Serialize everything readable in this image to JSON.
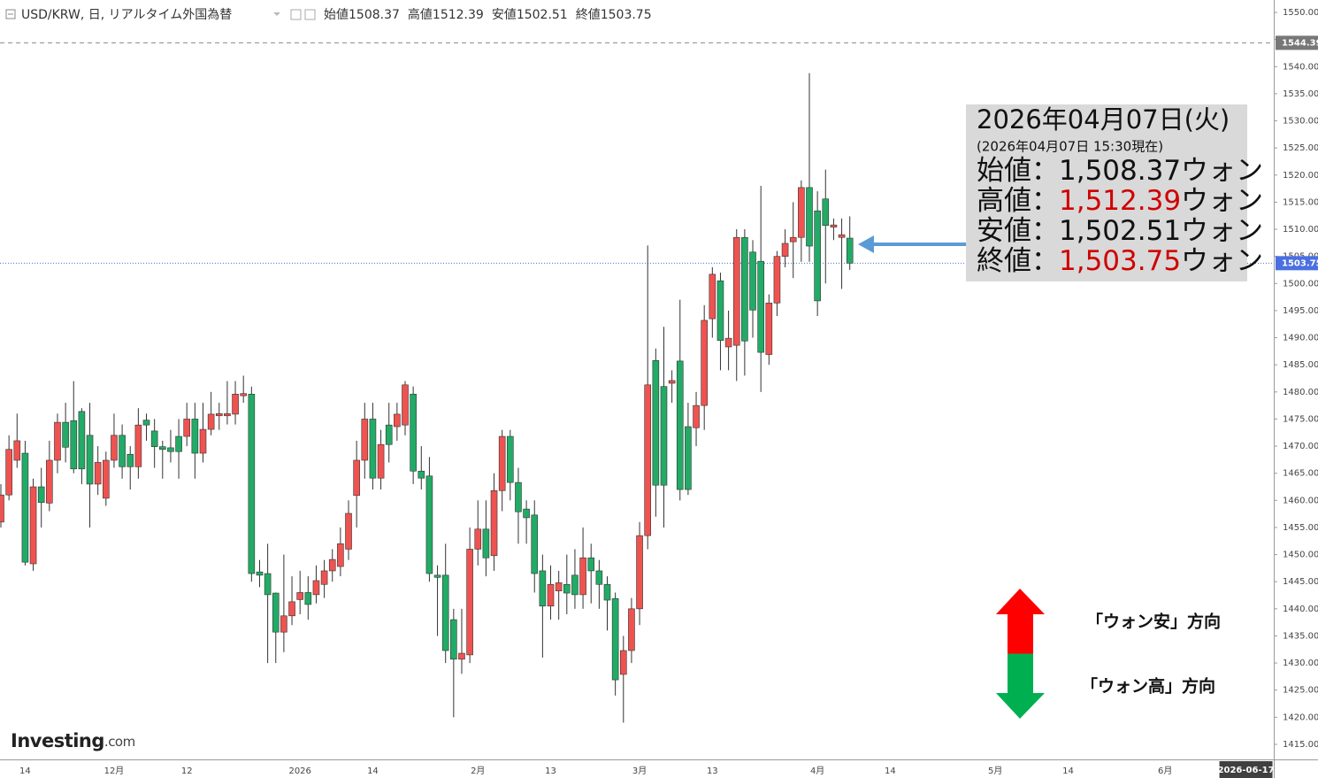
{
  "chart_data": {
    "type": "candlestick",
    "header": {
      "symbol": "USD/KRW, 日, リアルタイム外国為替",
      "items": [
        {
          "label": "始値",
          "value": 1508.37
        },
        {
          "label": "高値",
          "value": 1512.39
        },
        {
          "label": "安値",
          "value": 1502.51
        },
        {
          "label": "終値",
          "value": 1503.75
        }
      ]
    },
    "up_color": "#ef5350",
    "down_color": "#22ab66",
    "categories": [
      null,
      null,
      null,
      "14",
      null,
      null,
      null,
      null,
      null,
      null,
      null,
      null,
      null,
      null,
      "12月",
      null,
      null,
      null,
      null,
      null,
      null,
      null,
      null,
      "12",
      null,
      null,
      null,
      null,
      null,
      null,
      null,
      null,
      null,
      null,
      null,
      null,
      null,
      "2026",
      null,
      null,
      null,
      null,
      null,
      null,
      null,
      null,
      "14",
      null,
      null,
      null,
      null,
      null,
      null,
      null,
      null,
      null,
      null,
      null,
      null,
      "2月",
      null,
      null,
      null,
      null,
      null,
      null,
      null,
      null,
      "13",
      null,
      null,
      null,
      null,
      null,
      null,
      null,
      null,
      null,
      null,
      "3月",
      null,
      null,
      null,
      null,
      null,
      null,
      null,
      null,
      "13",
      null,
      null,
      null,
      null,
      null,
      null,
      null,
      null,
      null,
      null,
      null,
      null,
      "4月",
      null,
      null,
      null,
      null,
      null,
      null,
      null,
      null,
      "14",
      null,
      null,
      null,
      null,
      null,
      null,
      null,
      null,
      null,
      null,
      null,
      null,
      "5月",
      null,
      null,
      null,
      null,
      null,
      null,
      null,
      null,
      "14",
      null,
      null,
      null,
      null,
      null,
      null,
      null,
      null,
      null,
      null,
      null,
      "6月",
      null,
      null,
      null,
      null,
      null,
      null,
      null,
      null,
      null,
      "2026-06-17"
    ],
    "open": [
      1456,
      1461,
      1467.4,
      1468.7,
      1448.3,
      1462.5,
      1459.5,
      1467.4,
      1474.4,
      1474.7,
      1476.4,
      1472,
      1463,
      1460.4,
      1467.4,
      1472,
      1468.5,
      1466.2,
      1474.8,
      1472.8,
      1469.9,
      1469.7,
      1471.8,
      1471.8,
      1475,
      1468.7,
      1473.1,
      1475.6,
      1475.6,
      1475.9,
      1479.3,
      1479.6,
      1446.8,
      1446.5,
      1442.9,
      1435.7,
      1438.7,
      1441.7,
      1443,
      1442.6,
      1444.5,
      1447,
      1447.8,
      1451,
      1460.9,
      1467.4,
      1475,
      1464.1,
      1473.9,
      1473.6,
      1473.9,
      1479.6,
      1465.4,
      1464.5,
      1446.2,
      1446.2,
      1438,
      1430.7,
      1431.5,
      1451,
      1454.7,
      1449.8,
      1461.8,
      1471.8,
      1463.3,
      1458.4,
      1457.3,
      1447,
      1440.5,
      1443.3,
      1444.5,
      1446.2,
      1442.6,
      1449.4,
      1447,
      1444.5,
      1441.9,
      1427.9,
      1432.3,
      1440,
      1453.5,
      1485.8,
      1481,
      1481.6,
      1485.7,
      1473.6,
      1473.4,
      1477.5,
      1493.5,
      1500.5,
      1488.3,
      1488.6,
      1508.5,
      1505.8,
      1504.1,
      1486.9,
      1496.4,
      1505,
      1507.7,
      1508.5,
      1517.7,
      1513.4,
      1515.6,
      1510.4,
      1508.5,
      1508.37,
      null,
      null,
      null,
      null,
      null,
      null,
      null,
      null,
      null,
      null,
      null,
      null,
      null,
      null,
      null,
      null,
      null,
      null,
      null,
      null,
      null,
      null,
      null,
      null,
      null,
      null,
      null,
      null,
      null,
      null,
      null,
      null,
      null,
      null,
      null,
      null,
      null,
      null,
      null,
      null,
      null,
      null,
      null,
      null,
      null,
      null,
      null,
      null,
      null
    ],
    "high": [
      1463,
      1472,
      1476,
      1471,
      1464,
      1466,
      1471,
      1476,
      1478,
      1482,
      1477,
      1478,
      1470,
      1469,
      1476,
      1474,
      1470,
      1477,
      1476,
      1475,
      1471,
      1473,
      1475,
      1478,
      1478,
      1478,
      1480,
      1478,
      1482,
      1482,
      1483,
      1481,
      1449,
      1452,
      1443,
      1450,
      1446,
      1447,
      1446,
      1448,
      1449,
      1451,
      1455,
      1460,
      1471,
      1478,
      1478,
      1473,
      1478,
      1478,
      1482,
      1481,
      1470,
      1468,
      1448,
      1452,
      1440,
      1440,
      1455,
      1460,
      1460,
      1465,
      1473,
      1473,
      1466,
      1460,
      1460,
      1450,
      1448,
      1447,
      1450,
      1451,
      1455,
      1452,
      1449,
      1446,
      1443,
      1435,
      1442,
      1456,
      1507,
      1488,
      1492,
      1484,
      1497,
      1478,
      1480,
      1496,
      1503,
      1502,
      1495,
      1510,
      1510,
      1508,
      1518,
      1498,
      1506,
      1510,
      1515,
      1519,
      1538.8,
      1517,
      1521,
      1512,
      1512,
      1512.39,
      null,
      null,
      null,
      null,
      null,
      null,
      null,
      null,
      null,
      null,
      null,
      null,
      null,
      null,
      null,
      null,
      null,
      null,
      null,
      null,
      null,
      null,
      null,
      null,
      null,
      null,
      null,
      null,
      null,
      null,
      null,
      null,
      null,
      null,
      null,
      null,
      null,
      null,
      null,
      null,
      null,
      null,
      null,
      null,
      null,
      null,
      null,
      null,
      null
    ],
    "low": [
      1455,
      1460,
      1466,
      1448,
      1447,
      1455,
      1458,
      1465,
      1467,
      1465,
      1463,
      1455,
      1461,
      1459,
      1466,
      1464,
      1462,
      1464,
      1471,
      1466,
      1464,
      1467,
      1464,
      1470,
      1464,
      1467,
      1472,
      1473,
      1474,
      1474,
      1478,
      1445,
      1444,
      1430,
      1430,
      1432,
      1437,
      1439,
      1438,
      1441,
      1442,
      1445,
      1446,
      1449,
      1455,
      1464,
      1462,
      1462,
      1467,
      1471,
      1472,
      1463,
      1462,
      1445,
      1435,
      1430,
      1420,
      1428,
      1430,
      1448,
      1446,
      1447,
      1458,
      1460,
      1452,
      1452,
      1443,
      1431,
      1438,
      1438,
      1439,
      1440,
      1440,
      1441,
      1440,
      1436,
      1424,
      1419,
      1430,
      1437,
      1451,
      1457,
      1455,
      1478,
      1460,
      1461,
      1470,
      1473,
      1490,
      1484,
      1484,
      1482,
      1483,
      1490,
      1480,
      1485,
      1494,
      1503,
      1501,
      1504,
      1504,
      1494,
      1500,
      1508,
      1499,
      1502.51,
      null,
      null,
      null,
      null,
      null,
      null,
      null,
      null,
      null,
      null,
      null,
      null,
      null,
      null,
      null,
      null,
      null,
      null,
      null,
      null,
      null,
      null,
      null,
      null,
      null,
      null,
      null,
      null,
      null,
      null,
      null,
      null,
      null,
      null,
      null,
      null,
      null,
      null,
      null,
      null,
      null,
      null,
      null,
      null,
      null,
      null,
      null,
      null,
      null
    ],
    "close": [
      1461,
      1469.4,
      1471,
      1448.6,
      1462.5,
      1459.6,
      1467.4,
      1474.4,
      1469.8,
      1465.8,
      1465.8,
      1463,
      1467,
      1467.4,
      1472,
      1466.2,
      1466.2,
      1473.9,
      1473.9,
      1469.9,
      1469.4,
      1469,
      1469,
      1475,
      1468.7,
      1473.1,
      1475.9,
      1476,
      1476,
      1479.6,
      1479.7,
      1446.5,
      1446.2,
      1442.6,
      1435.7,
      1438.7,
      1441.3,
      1443,
      1440.8,
      1445.2,
      1447,
      1449.1,
      1452,
      1457.6,
      1467.4,
      1475,
      1464.1,
      1470.3,
      1470.3,
      1475.9,
      1481.3,
      1465.4,
      1464.1,
      1446.5,
      1445.8,
      1432.3,
      1430.7,
      1431.8,
      1451,
      1454.7,
      1449.4,
      1461.8,
      1471.8,
      1463.3,
      1457.9,
      1456.8,
      1446.5,
      1440.5,
      1444.5,
      1444.8,
      1442.9,
      1442.6,
      1449.4,
      1447,
      1444.5,
      1441.6,
      1426.9,
      1432.3,
      1440,
      1453.5,
      1481.3,
      1462.8,
      1462.8,
      1482.1,
      1462,
      1462,
      1477.5,
      1493.2,
      1501.7,
      1489.5,
      1489.9,
      1508.5,
      1489.4,
      1495.1,
      1487.3,
      1496.4,
      1505,
      1507.4,
      1508.5,
      1517.7,
      1506.9,
      1496.8,
      1510.7,
      1510.8,
      1509,
      1503.75,
      null,
      null,
      null,
      null,
      null,
      null,
      null,
      null,
      null,
      null,
      null,
      null,
      null,
      null,
      null,
      null,
      null,
      null,
      null,
      null,
      null,
      null,
      null,
      null,
      null,
      null,
      null,
      null,
      null,
      null,
      null,
      null,
      null,
      null,
      null,
      null,
      null,
      null,
      null,
      null,
      null,
      null,
      null,
      null,
      null,
      null,
      null,
      null,
      null
    ],
    "ylim": [
      1412.22,
      1552.29
    ],
    "yticks": [
      {
        "value": 1415,
        "label": "1415.00"
      },
      {
        "value": 1420,
        "label": "1420.00"
      },
      {
        "value": 1425,
        "label": "1425.00"
      },
      {
        "value": 1430,
        "label": "1430.00"
      },
      {
        "value": 1435,
        "label": "1435.00"
      },
      {
        "value": 1440,
        "label": "1440.00"
      },
      {
        "value": 1445,
        "label": "1445.00"
      },
      {
        "value": 1450,
        "label": "1450.00"
      },
      {
        "value": 1455,
        "label": "1455.00"
      },
      {
        "value": 1460,
        "label": "1460.00"
      },
      {
        "value": 1465,
        "label": "1465.00"
      },
      {
        "value": 1470,
        "label": "1470.00"
      },
      {
        "value": 1475,
        "label": "1475.00"
      },
      {
        "value": 1480,
        "label": "1480.00"
      },
      {
        "value": 1485,
        "label": "1485.00"
      },
      {
        "value": 1490,
        "label": "1490.00"
      },
      {
        "value": 1495,
        "label": "1495.00"
      },
      {
        "value": 1500,
        "label": "1500.00"
      },
      {
        "value": 1505,
        "label": "1505.00"
      },
      {
        "value": 1510,
        "label": "1510.00"
      },
      {
        "value": 1515,
        "label": "1515.00"
      },
      {
        "value": 1520,
        "label": "1520.00"
      },
      {
        "value": 1525,
        "label": "1525.00"
      },
      {
        "value": 1530,
        "label": "1530.00"
      },
      {
        "value": 1535,
        "label": "1535.00"
      },
      {
        "value": 1540,
        "label": "1540.00"
      },
      {
        "value": 1545,
        "label": "1545.00"
      },
      {
        "value": 1550,
        "label": "1550.00"
      }
    ],
    "high_line": 1544.39,
    "last_price": 1503.75,
    "last_price_color": "#4a6fe0",
    "info_box": {
      "date": "2026年04月07日(火)",
      "note": "(2026年04月07日 15:30現在)",
      "rows": [
        {
          "label": "始値：",
          "value": "1,508.37",
          "unit": "ウォン",
          "highlight": false
        },
        {
          "label": "高値：",
          "value": "1,512.39",
          "unit": "ウォン",
          "highlight": true
        },
        {
          "label": "安値：",
          "value": "1,502.51",
          "unit": "ウォン",
          "highlight": false
        },
        {
          "label": "終値：",
          "value": "1,503.75",
          "unit": "ウォン",
          "highlight": true
        }
      ],
      "highlight_color": "#d00000"
    },
    "annotations": {
      "weak": "「ウォン安」方向",
      "strong": "「ウォン高」方向"
    },
    "logo": {
      "brand": "Investing",
      "suffix": ".com"
    }
  }
}
